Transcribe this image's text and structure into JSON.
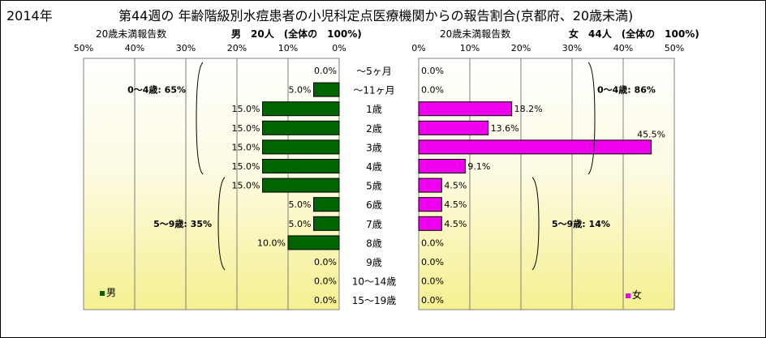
{
  "title": {
    "year": "2014年",
    "main": "第44週の  年齢階級別水痘患者の小児科定点医療機関からの報告割合(京都府、20歳未満)"
  },
  "chart_data": [
    {
      "type": "bar",
      "orientation": "horizontal",
      "direction": "right-to-left",
      "header_label": "20歳未満報告数",
      "header_total": "男　20人　(全体の　100%)",
      "legend": "男",
      "legend_position": "bottom-left",
      "color": "#006400",
      "xlim": [
        0,
        50
      ],
      "ticks": [
        "50%",
        "40%",
        "30%",
        "20%",
        "10%",
        "0%"
      ],
      "categories": [
        "～5ヶ月",
        "～11ヶ月",
        "1歳",
        "2歳",
        "3歳",
        "4歳",
        "5歳",
        "6歳",
        "7歳",
        "8歳",
        "9歳",
        "10～14歳",
        "15～19歳"
      ],
      "values": [
        0.0,
        5.0,
        15.0,
        15.0,
        15.0,
        15.0,
        15.0,
        5.0,
        5.0,
        10.0,
        0.0,
        0.0,
        0.0
      ],
      "value_labels": [
        "0.0%",
        "5.0%",
        "15.0%",
        "15.0%",
        "15.0%",
        "15.0%",
        "15.0%",
        "5.0%",
        "5.0%",
        "10.0%",
        "0.0%",
        "0.0%",
        "0.0%"
      ],
      "annotations": [
        {
          "text": "0～4歳: 65%",
          "from": 0,
          "to": 5
        },
        {
          "text": "5～9歳: 35%",
          "from": 6,
          "to": 10
        }
      ]
    },
    {
      "type": "bar",
      "orientation": "horizontal",
      "direction": "left-to-right",
      "header_label": "20歳未満報告数",
      "header_total": "女　44人　(全体の　100%)",
      "legend": "女",
      "legend_position": "bottom-right",
      "color": "#ee00ee",
      "xlim": [
        0,
        50
      ],
      "ticks": [
        "0%",
        "10%",
        "20%",
        "30%",
        "40%",
        "50%"
      ],
      "categories": [
        "～5ヶ月",
        "～11ヶ月",
        "1歳",
        "2歳",
        "3歳",
        "4歳",
        "5歳",
        "6歳",
        "7歳",
        "8歳",
        "9歳",
        "10～14歳",
        "15～19歳"
      ],
      "values": [
        0.0,
        0.0,
        18.2,
        13.6,
        45.5,
        9.1,
        4.5,
        4.5,
        4.5,
        0.0,
        0.0,
        0.0,
        0.0
      ],
      "value_labels": [
        "0.0%",
        "0.0%",
        "18.2%",
        "13.6%",
        "45.5%",
        "9.1%",
        "4.5%",
        "4.5%",
        "4.5%",
        "0.0%",
        "0.0%",
        "0.0%",
        "0.0%"
      ],
      "annotations": [
        {
          "text": "0～4歳: 86%",
          "from": 0,
          "to": 5
        },
        {
          "text": "5～9歳: 14%",
          "from": 6,
          "to": 10
        }
      ]
    }
  ]
}
